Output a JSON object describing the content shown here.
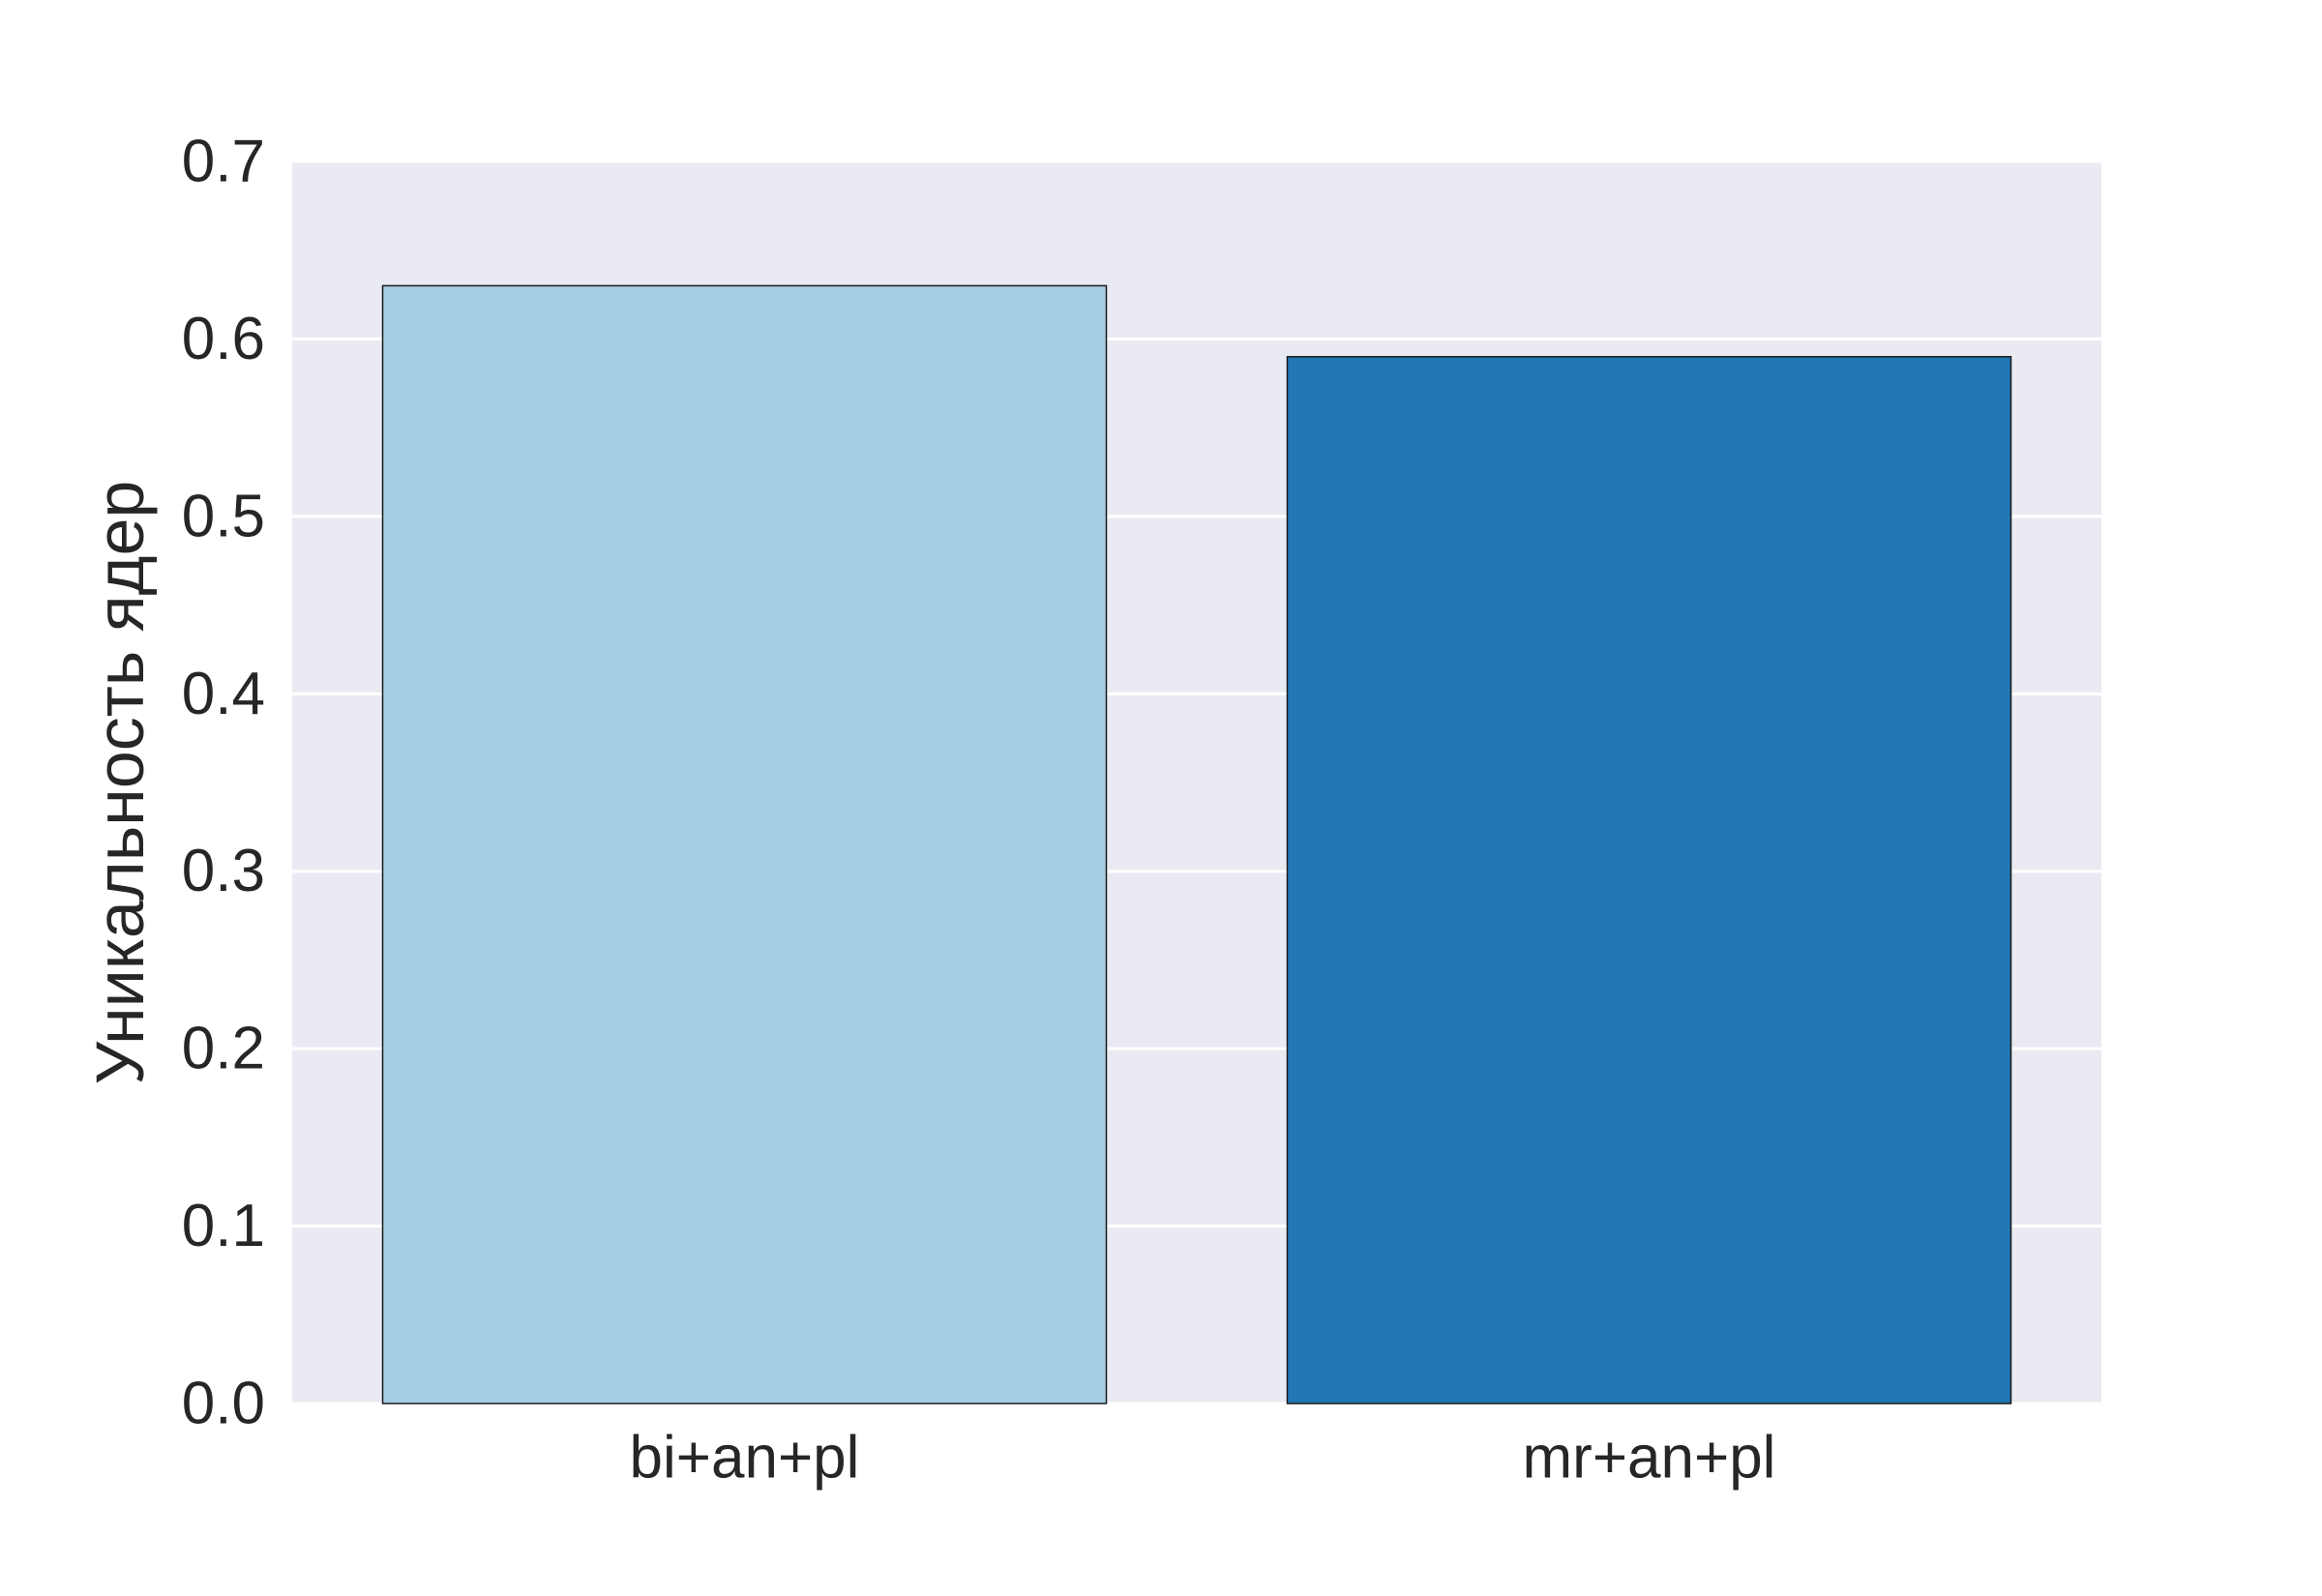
{
  "chart_data": {
    "type": "bar",
    "categories": [
      "bi+an+pl",
      "mr+an+pl"
    ],
    "values": [
      0.63,
      0.59
    ],
    "xlabel": "",
    "ylabel": "Уникальность ядер",
    "ylim": [
      0,
      0.7
    ],
    "yticks": [
      "0.0",
      "0.1",
      "0.2",
      "0.3",
      "0.4",
      "0.5",
      "0.6",
      "0.7"
    ],
    "grid": true,
    "colors": [
      "#a6cee3",
      "#2178b4"
    ],
    "background": "#eaeaf2",
    "gridline_color": "#ffffff",
    "bar_edge_color": "#1a1a1a"
  }
}
